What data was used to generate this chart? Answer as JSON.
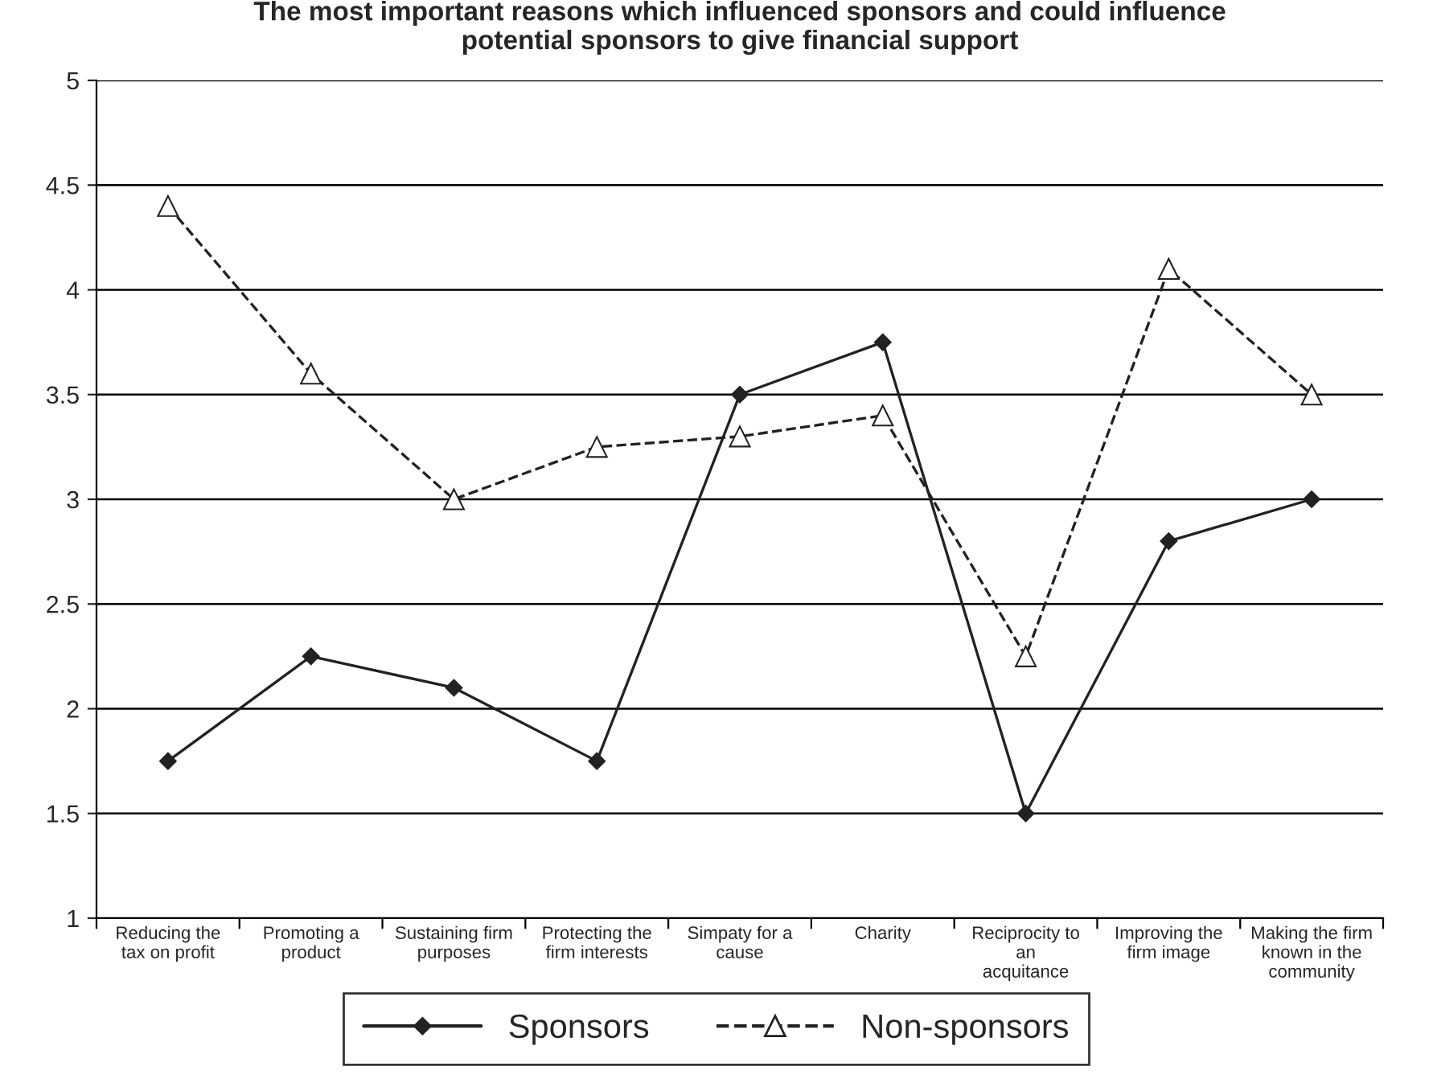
{
  "chart_data": {
    "type": "line",
    "title": "The most important reasons which influenced sponsors and could influence\npotential sponsors to give financial support",
    "categories": [
      "Reducing the\ntax on profit",
      "Promoting a\nproduct",
      "Sustaining firm\npurposes",
      "Protecting the\nfirm interests",
      "Simpaty for a\ncause",
      "Charity",
      "Reciprocity to\nan\nacquitance",
      "Improving the\nfirm image",
      "Making the firm\nknown in the\ncommunity"
    ],
    "series": [
      {
        "name": "Sponsors",
        "color": "#222222",
        "marker": "diamond",
        "line_style": "solid",
        "values": [
          1.75,
          2.25,
          2.1,
          1.75,
          3.5,
          3.75,
          1.5,
          2.8,
          3.0
        ]
      },
      {
        "name": "Non-sponsors",
        "color": "#222222",
        "marker": "triangle",
        "line_style": "dashed",
        "values": [
          4.4,
          3.6,
          3.0,
          3.25,
          3.3,
          3.4,
          2.25,
          4.1,
          3.5
        ]
      }
    ],
    "ylim": [
      1,
      5
    ],
    "yticks": [
      1,
      1.5,
      2,
      2.5,
      3,
      3.5,
      4,
      4.5,
      5
    ],
    "grid": "y",
    "legend": "bottom"
  }
}
